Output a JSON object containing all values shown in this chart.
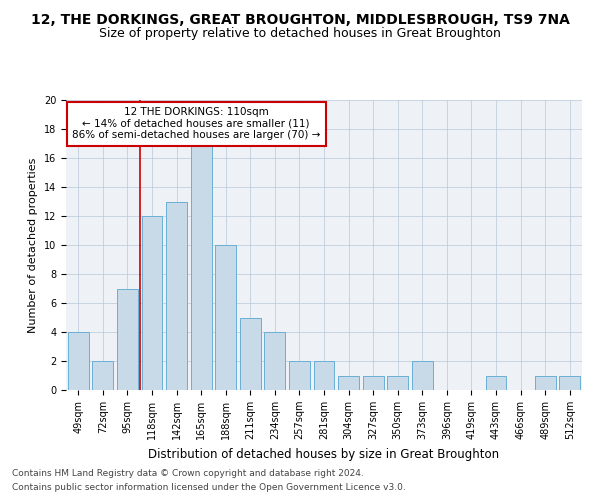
{
  "title": "12, THE DORKINGS, GREAT BROUGHTON, MIDDLESBROUGH, TS9 7NA",
  "subtitle": "Size of property relative to detached houses in Great Broughton",
  "xlabel": "Distribution of detached houses by size in Great Broughton",
  "ylabel": "Number of detached properties",
  "categories": [
    "49sqm",
    "72sqm",
    "95sqm",
    "118sqm",
    "142sqm",
    "165sqm",
    "188sqm",
    "211sqm",
    "234sqm",
    "257sqm",
    "281sqm",
    "304sqm",
    "327sqm",
    "350sqm",
    "373sqm",
    "396sqm",
    "419sqm",
    "443sqm",
    "466sqm",
    "489sqm",
    "512sqm"
  ],
  "values": [
    4,
    2,
    7,
    12,
    13,
    17,
    10,
    5,
    4,
    2,
    2,
    1,
    1,
    1,
    2,
    0,
    0,
    1,
    0,
    1,
    1
  ],
  "bar_color": "#c8d9e8",
  "bar_edge_color": "#6aafd6",
  "grid_color": "#b8c8d8",
  "background_color": "#eef2f7",
  "annotation_box_text": "12 THE DORKINGS: 110sqm\n← 14% of detached houses are smaller (11)\n86% of semi-detached houses are larger (70) →",
  "annotation_box_color": "#cc0000",
  "vline_x": 2.5,
  "vline_color": "#cc0000",
  "ylim": [
    0,
    20
  ],
  "yticks": [
    0,
    2,
    4,
    6,
    8,
    10,
    12,
    14,
    16,
    18,
    20
  ],
  "footnote1": "Contains HM Land Registry data © Crown copyright and database right 2024.",
  "footnote2": "Contains public sector information licensed under the Open Government Licence v3.0.",
  "title_fontsize": 10,
  "subtitle_fontsize": 9,
  "xlabel_fontsize": 8.5,
  "ylabel_fontsize": 8,
  "tick_fontsize": 7,
  "annotation_fontsize": 7.5,
  "footnote_fontsize": 6.5
}
